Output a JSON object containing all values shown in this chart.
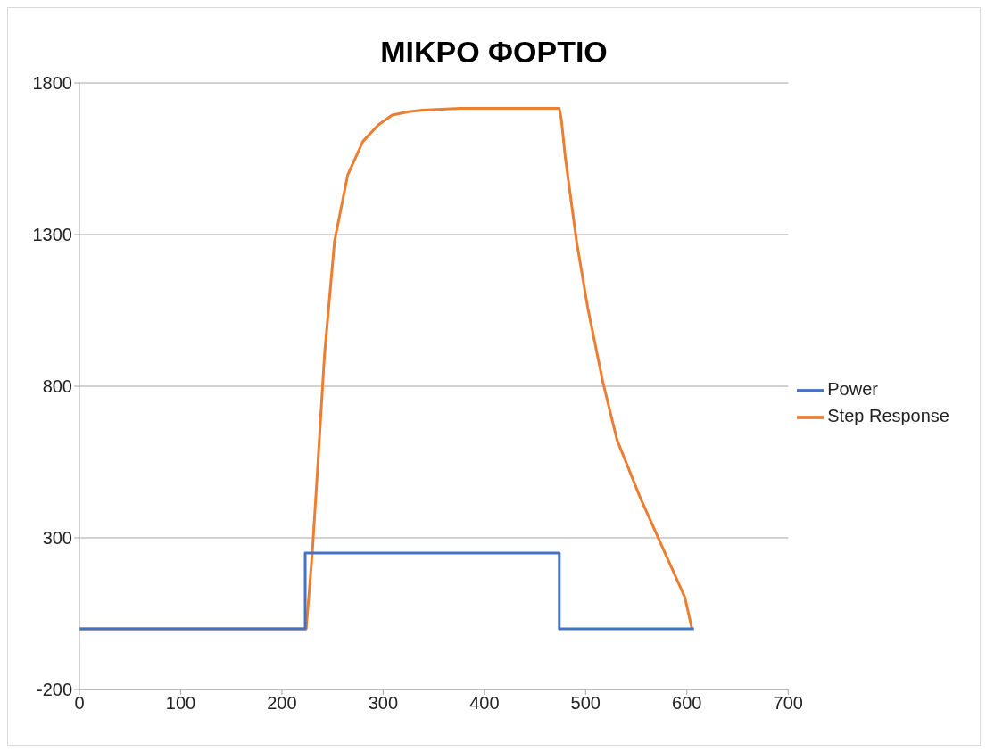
{
  "chart_data": {
    "type": "line",
    "title": "ΜΙΚΡΟ ΦΟΡΤΙΟ",
    "xlim": [
      0,
      700
    ],
    "xticks": [
      0,
      100,
      200,
      300,
      400,
      500,
      600,
      700
    ],
    "ylim": [
      -200,
      1800
    ],
    "yticks": [
      -200,
      300,
      800,
      1300,
      1800
    ],
    "grid": "y",
    "legend": "right",
    "marker": "none",
    "line_style": "solid",
    "series": [
      {
        "name": "Step Response",
        "color": "#ed7d31",
        "x": [
          0,
          224,
          230,
          235,
          242,
          252,
          265,
          280,
          295,
          309,
          325,
          339,
          376,
          420,
          474,
          476,
          480,
          491,
          502,
          517,
          531,
          554,
          576,
          598,
          605
        ],
        "values": [
          0,
          0,
          250,
          514,
          900,
          1279,
          1497,
          1607,
          1661,
          1694,
          1705,
          1710,
          1716,
          1716,
          1716,
          1680,
          1552,
          1279,
          1060,
          814,
          623,
          432,
          268,
          104,
          0
        ]
      },
      {
        "name": "Power",
        "type": "step",
        "color": "#4472c4",
        "x": [
          0,
          223,
          474,
          607
        ],
        "values": [
          0,
          250,
          0,
          0
        ]
      }
    ]
  }
}
